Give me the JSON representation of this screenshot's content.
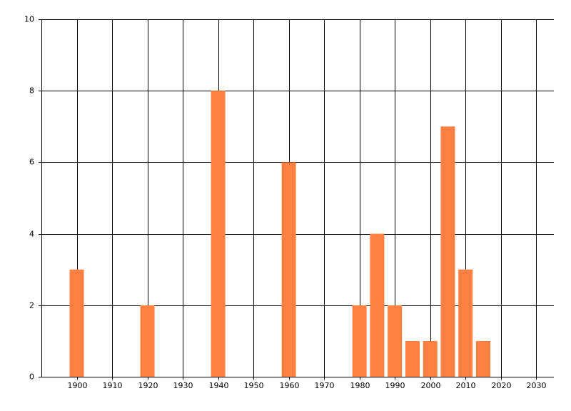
{
  "chart_data": {
    "type": "bar",
    "x": [
      1900,
      1920,
      1940,
      1960,
      1980,
      1985,
      1990,
      1995,
      2000,
      2005,
      2010,
      2015
    ],
    "values": [
      3,
      2,
      8,
      6,
      2,
      4,
      2,
      1,
      1,
      7,
      3,
      1
    ],
    "color": "#ff8040",
    "xlim": [
      1890,
      2035
    ],
    "xticks": [
      1900,
      1910,
      1920,
      1930,
      1940,
      1950,
      1960,
      1970,
      1980,
      1990,
      2000,
      2010,
      2020,
      2030
    ],
    "ylim": [
      0,
      10
    ],
    "yticks": [
      0,
      2,
      4,
      6,
      8,
      10
    ],
    "grid": true
  }
}
